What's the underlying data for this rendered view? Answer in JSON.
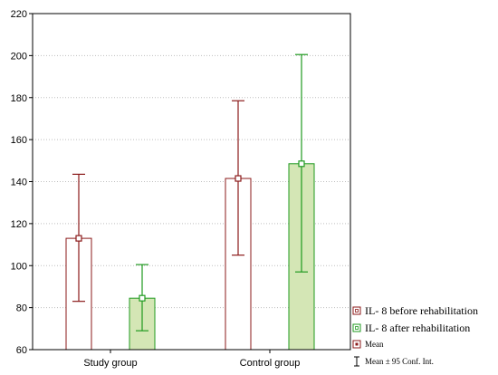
{
  "chart_data": {
    "type": "bar",
    "categories": [
      "Study group",
      "Control group"
    ],
    "ylim": [
      60,
      220
    ],
    "yticks": [
      60,
      80,
      100,
      120,
      140,
      160,
      180,
      200,
      220
    ],
    "grid": true,
    "legend_position": "bottom-right",
    "series": [
      {
        "name": "IL- 8 before rehabilitation",
        "color": "#8b1a1a",
        "fill": "#ffffff",
        "means": [
          113,
          141.5
        ],
        "ci_low": [
          83,
          105
        ],
        "ci_high": [
          143.5,
          178.5
        ]
      },
      {
        "name": "IL- 8 after rehabilitation",
        "color": "#1f9a1f",
        "fill": "#d4e6b5",
        "means": [
          84.5,
          148.5
        ],
        "ci_low": [
          69,
          97
        ],
        "ci_high": [
          100.5,
          200.5
        ]
      }
    ],
    "legend_extra": [
      "Mean",
      "Mean ± 95 Conf. Int."
    ]
  }
}
